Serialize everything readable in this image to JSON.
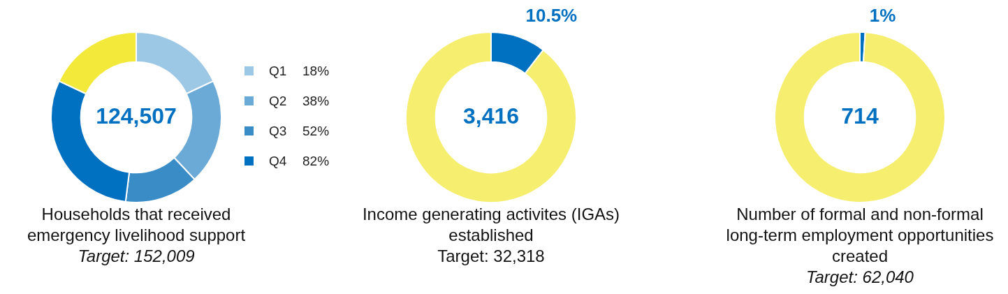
{
  "chart_data": [
    {
      "type": "donut",
      "title": "Households that received emergency livelihood support",
      "categories": [
        "Q1",
        "Q2",
        "Q3",
        "Q4",
        null
      ],
      "values": [
        18,
        20,
        14,
        30,
        18
      ],
      "colors": [
        "#9dc8e5",
        "#6baad6",
        "#3a8cc7",
        "#0070c0",
        "#f3e93a"
      ],
      "legend": "right",
      "annotations": [
        "124,507",
        "Target: 152,009",
        "18%",
        "38%",
        "52%",
        "82%"
      ]
    },
    {
      "type": "donut",
      "title": "Income generating activites (IGAs) established",
      "categories": [
        null,
        null
      ],
      "values": [
        10.5,
        89.5
      ],
      "colors": [
        "#0070c0",
        "#f5ee6e"
      ],
      "value_labels": [
        "10.5%",
        null
      ],
      "annotations": [
        "3,416",
        "Target: 32,318"
      ]
    },
    {
      "type": "donut",
      "title": "Number of formal and non-formal long-term employment opportunities created",
      "categories": [
        null,
        null
      ],
      "values": [
        1,
        99
      ],
      "colors": [
        "#0070c0",
        "#f5ee6e"
      ],
      "value_labels": [
        "1%",
        null
      ],
      "annotations": [
        "714",
        "Target: 62,040"
      ]
    }
  ]
}
